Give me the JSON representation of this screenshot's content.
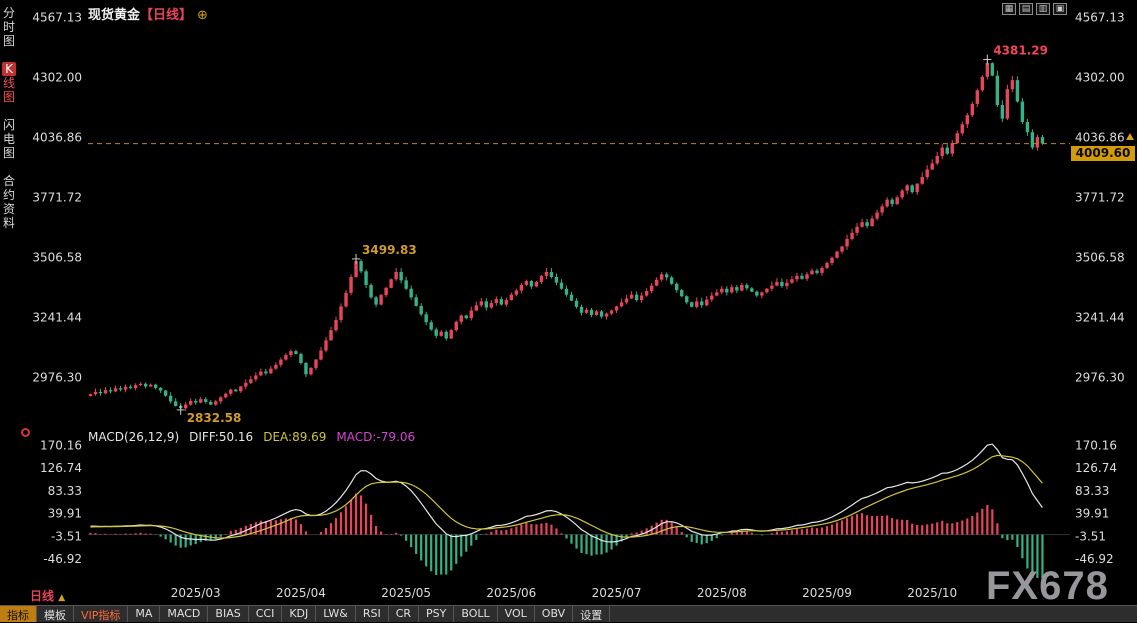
{
  "colors": {
    "up": "#e8455a",
    "down": "#35b287",
    "axis_text": "#dcdcdc",
    "dashed_line": "#bb8b0e",
    "price_tag_bg": "#d29b0a",
    "diff_line": "#e6e6e6",
    "dea_line": "#cfc43a",
    "macd_value": "#d543d5",
    "hist_up": "#e8455a",
    "hist_down": "#35b287"
  },
  "header": {
    "title": "现货黄金",
    "period_tag": "【日线】",
    "settings_icon": "⊕"
  },
  "sidebar": {
    "items": [
      {
        "name": "sidebar-item-time-chart",
        "label": "分时图",
        "active": false
      },
      {
        "name": "sidebar-item-kline-chart",
        "label": "K线图",
        "active": true
      },
      {
        "name": "sidebar-item-lightning-chart",
        "label": "闪电图",
        "active": false
      },
      {
        "name": "sidebar-item-contract-info",
        "label": "合约资料",
        "active": false
      }
    ]
  },
  "top_icons": [
    {
      "name": "layout-grid-icon",
      "glyph": "▦"
    },
    {
      "name": "layout-left-icon",
      "glyph": "▤"
    },
    {
      "name": "layout-right-icon",
      "glyph": "▥"
    },
    {
      "name": "layout-quad-icon",
      "glyph": "▣"
    }
  ],
  "price_axis": {
    "ticks": [
      4567.13,
      4302.0,
      4036.86,
      3771.72,
      3506.58,
      3241.44,
      2976.3
    ],
    "last_price": "4009.60"
  },
  "macd_header": {
    "label": "MACD(26,12,9)",
    "diff": "DIFF:50.16",
    "dea": "DEA:89.69",
    "macd": "MACD:-79.06"
  },
  "chart_data": [
    {
      "type": "candlestick",
      "title": "现货黄金 日线 (Spot Gold Daily)",
      "ylim": [
        2810,
        4600
      ],
      "y_ticks": [
        4567.13,
        4302.0,
        4036.86,
        3771.72,
        3506.58,
        3241.44,
        2976.3
      ],
      "x_labels": [
        "2025/03",
        "2025/04",
        "2025/05",
        "2025/06",
        "2025/07",
        "2025/08",
        "2025/09",
        "2025/10"
      ],
      "month_start_indices": [
        21,
        42,
        63,
        84,
        105,
        126,
        147,
        168
      ],
      "slots": 196,
      "last": 4009.6,
      "key_points": [
        {
          "i": 18,
          "low": 2832.58,
          "label": "2832.58",
          "color": "#cf9a2e"
        },
        {
          "i": 53,
          "high": 3499.83,
          "label": "3499.83",
          "color": "#cf9a2e"
        },
        {
          "i": 179,
          "high": 4381.29,
          "label": "4381.29",
          "color": "#f4445a"
        }
      ],
      "closes": [
        2902,
        2912,
        2906,
        2920,
        2914,
        2928,
        2922,
        2935,
        2929,
        2942,
        2948,
        2936,
        2944,
        2930,
        2918,
        2895,
        2870,
        2850,
        2840,
        2856,
        2872,
        2865,
        2880,
        2868,
        2856,
        2870,
        2888,
        2904,
        2922,
        2915,
        2936,
        2952,
        2968,
        2985,
        3002,
        2994,
        3015,
        3032,
        3055,
        3075,
        3092,
        3080,
        3040,
        2990,
        3018,
        3055,
        3095,
        3140,
        3185,
        3230,
        3290,
        3350,
        3420,
        3490,
        3445,
        3385,
        3330,
        3298,
        3340,
        3372,
        3410,
        3442,
        3405,
        3368,
        3330,
        3292,
        3255,
        3220,
        3188,
        3160,
        3178,
        3148,
        3185,
        3222,
        3250,
        3238,
        3272,
        3295,
        3312,
        3285,
        3305,
        3322,
        3298,
        3318,
        3342,
        3360,
        3385,
        3402,
        3378,
        3398,
        3425,
        3442,
        3420,
        3395,
        3368,
        3342,
        3315,
        3288,
        3262,
        3275,
        3252,
        3268,
        3245,
        3258,
        3272,
        3290,
        3308,
        3325,
        3342,
        3318,
        3338,
        3358,
        3382,
        3408,
        3432,
        3418,
        3390,
        3362,
        3335,
        3308,
        3288,
        3312,
        3295,
        3320,
        3338,
        3352,
        3368,
        3352,
        3375,
        3360,
        3385,
        3370,
        3355,
        3338,
        3352,
        3368,
        3382,
        3398,
        3380,
        3395,
        3410,
        3425,
        3412,
        3432,
        3448,
        3438,
        3460,
        3482,
        3505,
        3532,
        3555,
        3588,
        3615,
        3642,
        3662,
        3645,
        3678,
        3705,
        3732,
        3762,
        3742,
        3772,
        3802,
        3825,
        3795,
        3832,
        3862,
        3895,
        3922,
        3955,
        3992,
        3965,
        4012,
        4055,
        4095,
        4135,
        4185,
        4245,
        4305,
        4365,
        4310,
        4180,
        4120,
        4250,
        4290,
        4195,
        4105,
        4060,
        3992,
        4038,
        4009.6
      ]
    },
    {
      "type": "macd",
      "title": "MACD(26,12,9)",
      "params": [
        26,
        12,
        9
      ],
      "ylim": [
        -83,
        196
      ],
      "y_ticks": [
        170.16,
        126.74,
        83.33,
        39.91,
        -3.51,
        -46.92
      ],
      "displayed": {
        "diff": 50.16,
        "dea": 89.69,
        "macd": -79.06
      }
    }
  ],
  "bottom": {
    "period_label": "日线",
    "period_arrow": "▲",
    "watermark": "FX678",
    "toolbar": [
      {
        "name": "tab-indicators",
        "label": "指标",
        "style": "active"
      },
      {
        "name": "tab-templates",
        "label": "模板",
        "style": "normal"
      },
      {
        "name": "tab-vip-indicators",
        "label": "VIP指标",
        "style": "vip"
      },
      {
        "name": "tab-ma",
        "label": "MA",
        "style": "normal"
      },
      {
        "name": "tab-macd",
        "label": "MACD",
        "style": "normal"
      },
      {
        "name": "tab-bias",
        "label": "BIAS",
        "style": "normal"
      },
      {
        "name": "tab-cci",
        "label": "CCI",
        "style": "normal"
      },
      {
        "name": "tab-kdj",
        "label": "KDJ",
        "style": "normal"
      },
      {
        "name": "tab-lw",
        "label": "LW&",
        "style": "normal"
      },
      {
        "name": "tab-rsi",
        "label": "RSI",
        "style": "normal"
      },
      {
        "name": "tab-cr",
        "label": "CR",
        "style": "normal"
      },
      {
        "name": "tab-psy",
        "label": "PSY",
        "style": "normal"
      },
      {
        "name": "tab-boll",
        "label": "BOLL",
        "style": "normal"
      },
      {
        "name": "tab-vol",
        "label": "VOL",
        "style": "normal"
      },
      {
        "name": "tab-obv",
        "label": "OBV",
        "style": "normal"
      },
      {
        "name": "tab-settings",
        "label": "设置",
        "style": "normal"
      }
    ]
  }
}
